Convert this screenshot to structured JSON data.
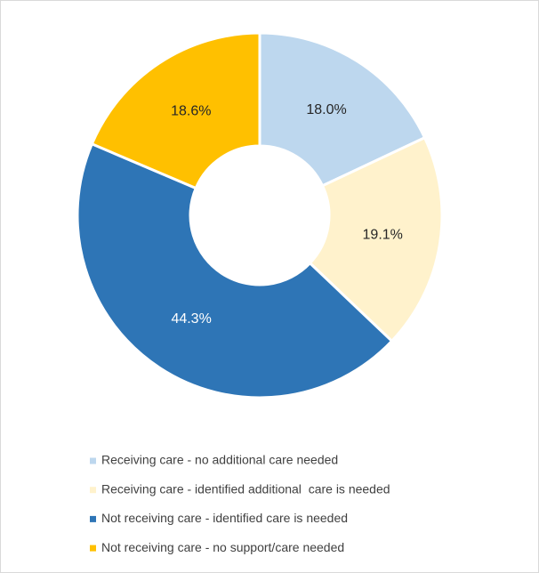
{
  "chart_data": {
    "type": "donut",
    "categories": [
      "Receiving care - no additional care needed",
      "Receiving care - identified additional  care is needed",
      "Not receiving care - identified care is needed",
      "Not receiving care - no support/care needed"
    ],
    "values": [
      18.0,
      19.1,
      44.3,
      18.6
    ],
    "value_labels": [
      "18.0%",
      "19.1%",
      "44.3%",
      "18.6%"
    ],
    "colors": [
      "#bdd7ee",
      "#fff2cc",
      "#2e75b6",
      "#ffc000"
    ],
    "label_colors": [
      "#262626",
      "#262626",
      "#ffffff",
      "#262626"
    ],
    "legend": "bottom"
  }
}
